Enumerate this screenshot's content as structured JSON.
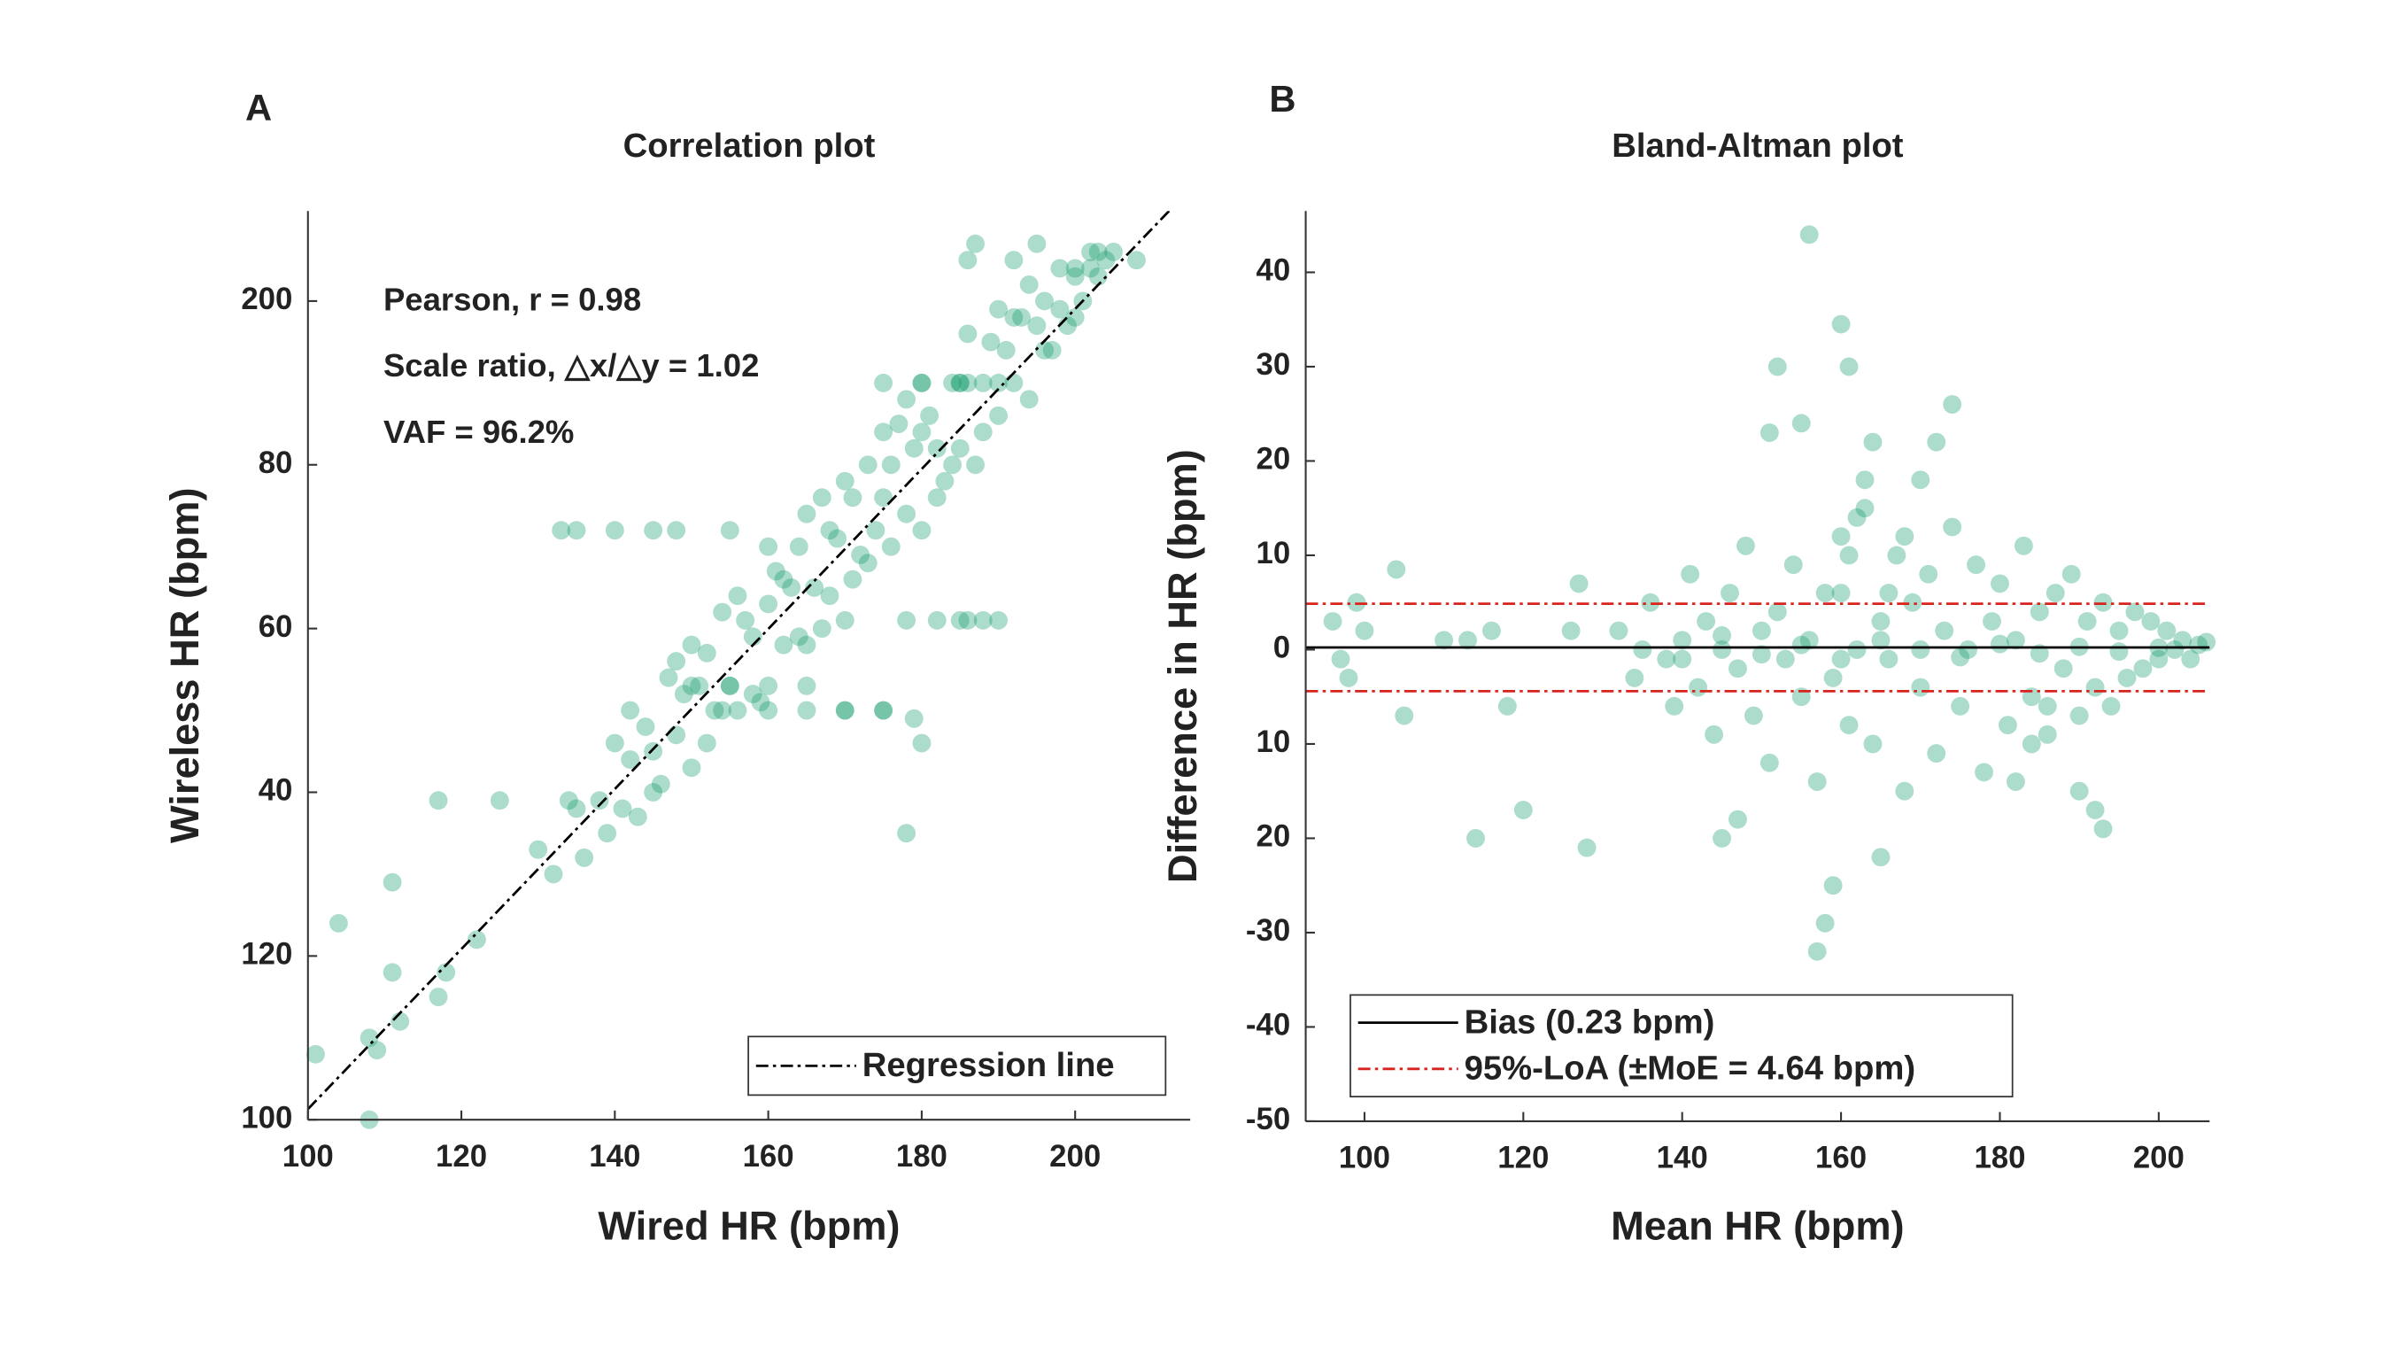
{
  "chart_data": [
    {
      "type": "scatter",
      "panel": "A",
      "title": "Correlation plot",
      "xlabel": "Wired HR (bpm)",
      "ylabel": "Wireless HR (bpm)",
      "xlim": [
        100,
        215
      ],
      "ylim": [
        100,
        211
      ],
      "xticks": [
        100,
        120,
        140,
        160,
        180,
        200
      ],
      "yticks": [
        100,
        120,
        {
          "value": 140,
          "label": "40"
        },
        {
          "value": 160,
          "label": "60"
        },
        {
          "value": 180,
          "label": "80"
        },
        200
      ],
      "annotations": [
        "Pearson, r = 0.98",
        "Scale ratio, △x/△y = 1.02",
        "VAF = 96.2%"
      ],
      "legend": "lower right",
      "series": [
        {
          "color": "#109c6a",
          "x": [
            130,
            132,
            134,
            136,
            138,
            140,
            141,
            142,
            143,
            144,
            145,
            146,
            147,
            148,
            149,
            150,
            151,
            152,
            153,
            154,
            155,
            156,
            157,
            158,
            159,
            160,
            161,
            162,
            163,
            164,
            165,
            166,
            167,
            168,
            169,
            170,
            171,
            172,
            173,
            174,
            175,
            176,
            177,
            178,
            179,
            180,
            181,
            182,
            183,
            184,
            185,
            186,
            187,
            188,
            189,
            190,
            191,
            192,
            193,
            194,
            195,
            196,
            197,
            198,
            199,
            200,
            201,
            202,
            203,
            204,
            135,
            139,
            142,
            145,
            148,
            150,
            152,
            154,
            156,
            158,
            160,
            162,
            164,
            165,
            167,
            168,
            170,
            171,
            173,
            175,
            176,
            178,
            180,
            182,
            184,
            186,
            188,
            190,
            192,
            194,
            196,
            198,
            200,
            202,
            101,
            104,
            108,
            109,
            108,
            111,
            111,
            112,
            117,
            118,
            117,
            125,
            122,
            133,
            135,
            140,
            145,
            148,
            155,
            170,
            175,
            185,
            188,
            180,
            185,
            190,
            178,
            180,
            179,
            186,
            192,
            195,
            200,
            203,
            205,
            208,
            187,
            178,
            182,
            186,
            190,
            160,
            165,
            170,
            175,
            150,
            155,
            160,
            165,
            175,
            180,
            185
          ],
          "y": [
            133,
            130,
            139,
            132,
            139,
            146,
            138,
            144,
            137,
            148,
            145,
            141,
            154,
            147,
            152,
            143,
            153,
            157,
            150,
            162,
            153,
            150,
            161,
            159,
            151,
            163,
            167,
            158,
            165,
            159,
            174,
            165,
            160,
            172,
            171,
            161,
            176,
            169,
            180,
            172,
            176,
            170,
            185,
            174,
            182,
            172,
            186,
            182,
            178,
            190,
            182,
            190,
            180,
            190,
            195,
            186,
            194,
            190,
            198,
            188,
            197,
            200,
            194,
            199,
            197,
            203,
            200,
            204,
            203,
            205,
            138,
            135,
            150,
            140,
            156,
            158,
            146,
            150,
            164,
            152,
            170,
            166,
            170,
            158,
            176,
            164,
            178,
            166,
            168,
            184,
            180,
            188,
            184,
            176,
            180,
            196,
            184,
            199,
            198,
            202,
            194,
            204,
            198,
            206,
            108,
            124,
            110,
            108.5,
            100,
            129,
            118,
            112,
            115,
            118,
            139,
            139,
            122,
            172,
            172,
            172,
            172,
            172,
            172,
            150,
            150,
            161,
            161,
            190,
            190,
            190,
            135,
            146,
            149,
            205,
            205,
            207,
            204,
            206,
            206,
            205,
            207,
            161,
            161,
            161,
            161,
            150,
            150,
            150,
            150,
            153,
            153,
            153,
            153,
            190,
            190,
            190
          ]
        }
      ],
      "lines": [
        {
          "name": "Regression line",
          "color": "#000000",
          "dash": "dashdot",
          "x": [
            100,
            215
          ],
          "y": [
            101.3,
            213.7
          ]
        }
      ]
    },
    {
      "type": "scatter",
      "panel": "B",
      "title": "Bland-Altman plot",
      "xlabel": "Mean HR (bpm)",
      "ylabel": "Difference in HR (bpm)",
      "xlim": [
        92.6,
        206.4
      ],
      "ylim": [
        -50,
        46.5
      ],
      "xticks": [
        100,
        120,
        140,
        160,
        180,
        200
      ],
      "yticks": [
        -50,
        -40,
        -30,
        {
          "value": -20,
          "label": "20"
        },
        {
          "value": -10,
          "label": "10"
        },
        0,
        10,
        20,
        30,
        40
      ],
      "legend": "lower left",
      "series": [
        {
          "color": "#109c6a",
          "x": [
            132,
            134,
            136,
            138,
            139,
            140,
            141,
            142,
            143,
            144,
            145,
            146,
            147,
            148,
            149,
            150,
            151,
            152,
            153,
            154,
            155,
            156,
            157,
            158,
            159,
            160,
            161,
            162,
            163,
            164,
            165,
            166,
            167,
            168,
            169,
            170,
            171,
            172,
            173,
            174,
            175,
            176,
            177,
            178,
            179,
            180,
            181,
            182,
            183,
            184,
            185,
            186,
            187,
            188,
            189,
            190,
            191,
            192,
            193,
            194,
            195,
            196,
            197,
            198,
            199,
            200,
            201,
            202,
            203,
            204,
            205,
            206,
            135,
            140,
            145,
            150,
            155,
            160,
            165,
            170,
            175,
            180,
            185,
            190,
            195,
            200,
            160,
            161,
            162,
            163,
            164,
            166,
            168,
            170,
            172,
            174,
            182,
            184,
            186,
            96,
            97,
            98,
            99,
            100,
            104,
            105,
            110,
            113,
            114,
            116,
            118,
            120,
            126,
            127,
            128,
            156,
            160,
            161,
            152,
            151,
            155,
            165,
            157,
            158,
            159,
            145,
            147,
            193,
            190,
            192
          ],
          "y": [
            2,
            -3,
            5,
            -1,
            -6,
            1,
            8,
            -4,
            3,
            -9,
            0,
            6,
            -2,
            11,
            -7,
            2,
            -12,
            4,
            -1,
            9,
            -5,
            1,
            -14,
            6,
            -3,
            12,
            -8,
            0,
            15,
            -10,
            3,
            -1,
            10,
            -15,
            5,
            -4,
            8,
            -11,
            2,
            13,
            -6,
            0,
            9,
            -13,
            3,
            7,
            -8,
            1,
            11,
            -5,
            4,
            -9,
            6,
            -2,
            8,
            -7,
            3,
            -4,
            5,
            -6,
            2,
            -3,
            4,
            -2,
            3,
            -1,
            2,
            0,
            1,
            -1,
            0.5,
            0.8,
            0,
            -1,
            1.5,
            -0.5,
            0.5,
            -1,
            1,
            0,
            -0.8,
            0.6,
            -0.4,
            0.3,
            -0.2,
            0.2,
            6,
            10,
            14,
            18,
            22,
            6,
            12,
            18,
            22,
            26,
            -14,
            -10,
            -6,
            3,
            -1,
            -3,
            5,
            2,
            8.5,
            -7,
            1,
            1,
            -20,
            2,
            -6,
            -17,
            2,
            7,
            -21,
            44,
            34.5,
            30,
            30,
            23,
            24,
            -22,
            -32,
            -29,
            -25,
            -20,
            -18,
            -19,
            -15,
            -17
          ]
        }
      ],
      "hlines": [
        {
          "name": "Bias (0.23 bpm)",
          "color": "#000000",
          "dash": "solid",
          "y": [
            0.23
          ]
        },
        {
          "name": "95%-LoA (±MoE = 4.64 bpm)",
          "color": "#d9231f",
          "dash": "dashdot",
          "y": [
            4.87,
            -4.41
          ]
        }
      ]
    }
  ]
}
